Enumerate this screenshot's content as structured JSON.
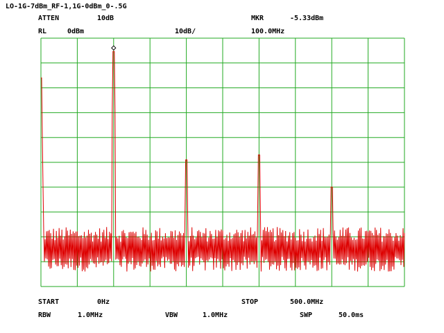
{
  "header": {
    "title": "LO-1G-7dBm_RF-1,1G-0dBm_0-.5G",
    "atten_label": "ATTEN",
    "atten_value": "10dB",
    "mkr_label": "MKR",
    "mkr_value": "-5.33dBm",
    "rl_label": "RL",
    "rl_value": "0dBm",
    "scale": "10dB/",
    "mkr_freq": "100.0MHz"
  },
  "footer": {
    "start_label": "START",
    "start_value": "0Hz",
    "stop_label": "STOP",
    "stop_value": "500.0MHz",
    "rbw_label": "RBW",
    "rbw_value": "1.0MHz",
    "vbw_label": "VBW",
    "vbw_value": "1.0MHz",
    "swp_label": "SWP",
    "swp_value": "50.0ms"
  },
  "colors": {
    "grid": "#22aa22",
    "trace": "#dd0000",
    "background": "#ffffff",
    "text": "#000000"
  },
  "chart_data": {
    "type": "line",
    "x_unit": "MHz",
    "y_unit": "dBm",
    "xlim": [
      0,
      500
    ],
    "ylim": [
      -100,
      0
    ],
    "x_divisions": 10,
    "y_divisions": 10,
    "grid": true,
    "noise_floor_range": [
      -79,
      -89
    ],
    "spurs": [
      {
        "x": 0,
        "y": -16
      },
      {
        "x": 100,
        "y": -5.33
      },
      {
        "x": 200,
        "y": -49
      },
      {
        "x": 300,
        "y": -47
      },
      {
        "x": 400,
        "y": -60
      }
    ],
    "marker": {
      "x": 100,
      "y": -5.33
    }
  }
}
